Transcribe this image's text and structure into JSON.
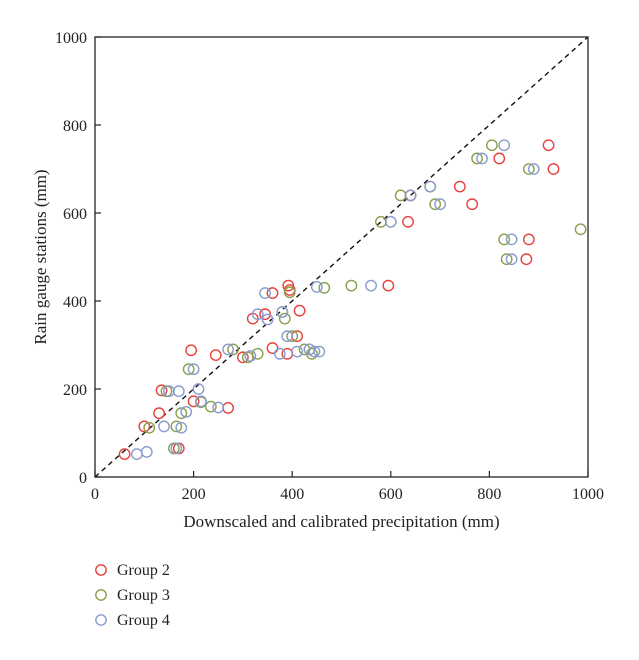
{
  "chart_data": {
    "type": "scatter",
    "title": "",
    "xlabel": "Downscaled and calibrated precipitation (mm)",
    "ylabel": "Rain gauge stations (mm)",
    "xlim": [
      0,
      1000
    ],
    "ylim": [
      0,
      1000
    ],
    "xticks": [
      0,
      200,
      400,
      600,
      800,
      1000
    ],
    "yticks": [
      0,
      200,
      400,
      600,
      800,
      1000
    ],
    "grid": false,
    "legend_position": "bottom-left",
    "reference_line": {
      "style": "dashed",
      "from": [
        0,
        0
      ],
      "to": [
        1000,
        1000
      ]
    },
    "series": [
      {
        "name": "Group 2",
        "color": "#e8413c",
        "points": [
          [
            60,
            52
          ],
          [
            100,
            115
          ],
          [
            130,
            145
          ],
          [
            135,
            197
          ],
          [
            170,
            65
          ],
          [
            195,
            288
          ],
          [
            200,
            172
          ],
          [
            245,
            277
          ],
          [
            270,
            157
          ],
          [
            300,
            272
          ],
          [
            320,
            360
          ],
          [
            345,
            370
          ],
          [
            360,
            418
          ],
          [
            360,
            293
          ],
          [
            390,
            280
          ],
          [
            392,
            435
          ],
          [
            395,
            425
          ],
          [
            410,
            320
          ],
          [
            415,
            378
          ],
          [
            595,
            435
          ],
          [
            635,
            580
          ],
          [
            640,
            640
          ],
          [
            740,
            660
          ],
          [
            765,
            620
          ],
          [
            820,
            724
          ],
          [
            880,
            540
          ],
          [
            875,
            495
          ],
          [
            920,
            754
          ],
          [
            930,
            700
          ]
        ]
      },
      {
        "name": "Group 3",
        "color": "#8aa04a",
        "points": [
          [
            110,
            112
          ],
          [
            145,
            195
          ],
          [
            160,
            65
          ],
          [
            165,
            115
          ],
          [
            175,
            145
          ],
          [
            190,
            245
          ],
          [
            215,
            170
          ],
          [
            235,
            160
          ],
          [
            280,
            290
          ],
          [
            310,
            272
          ],
          [
            330,
            280
          ],
          [
            380,
            375
          ],
          [
            385,
            360
          ],
          [
            395,
            420
          ],
          [
            400,
            320
          ],
          [
            425,
            290
          ],
          [
            440,
            280
          ],
          [
            465,
            430
          ],
          [
            520,
            435
          ],
          [
            580,
            580
          ],
          [
            620,
            640
          ],
          [
            680,
            660
          ],
          [
            690,
            620
          ],
          [
            775,
            724
          ],
          [
            805,
            754
          ],
          [
            830,
            540
          ],
          [
            835,
            495
          ],
          [
            880,
            700
          ],
          [
            985,
            563
          ]
        ]
      },
      {
        "name": "Group 4",
        "color": "#8a9bd0",
        "points": [
          [
            85,
            52
          ],
          [
            105,
            57
          ],
          [
            140,
            115
          ],
          [
            150,
            195
          ],
          [
            165,
            65
          ],
          [
            170,
            195
          ],
          [
            175,
            112
          ],
          [
            185,
            148
          ],
          [
            200,
            245
          ],
          [
            210,
            200
          ],
          [
            215,
            172
          ],
          [
            250,
            158
          ],
          [
            270,
            290
          ],
          [
            315,
            275
          ],
          [
            330,
            370
          ],
          [
            345,
            418
          ],
          [
            350,
            358
          ],
          [
            375,
            280
          ],
          [
            380,
            375
          ],
          [
            390,
            320
          ],
          [
            410,
            285
          ],
          [
            435,
            290
          ],
          [
            445,
            285
          ],
          [
            450,
            432
          ],
          [
            455,
            285
          ],
          [
            560,
            435
          ],
          [
            600,
            580
          ],
          [
            640,
            640
          ],
          [
            680,
            660
          ],
          [
            700,
            620
          ],
          [
            785,
            724
          ],
          [
            830,
            754
          ],
          [
            845,
            540
          ],
          [
            845,
            495
          ],
          [
            890,
            700
          ]
        ]
      }
    ]
  }
}
